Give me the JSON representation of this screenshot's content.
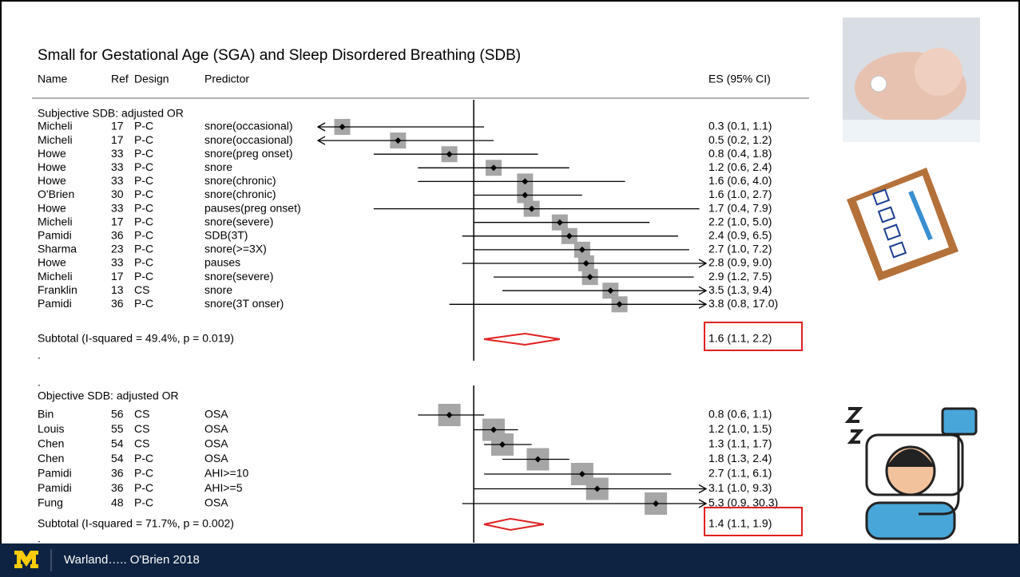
{
  "chart_data": {
    "type": "forest",
    "title": "Small for Gestational Age (SGA) and Sleep Disordered Breathing (SDB)",
    "columns": [
      "Name",
      "Ref",
      "Design",
      "Predictor",
      "ES (95% CI)"
    ],
    "xscale": "log",
    "xlim": [
      0.24,
      8.4
    ],
    "null_line": 1,
    "box_color": "#a6a6a6",
    "diamond_color": "#e02020",
    "highlight_color": "#e02020",
    "groups": [
      {
        "title": "Subjective SDB: adjusted OR",
        "after": ".",
        "rows": [
          {
            "name": "Micheli",
            "ref": 17,
            "design": "P-C",
            "predictor": "snore(occasional)",
            "es": 0.3,
            "lo": 0.1,
            "hi": 1.1,
            "label": "0.3 (0.1, 1.1)"
          },
          {
            "name": "Micheli",
            "ref": 17,
            "design": "P-C",
            "predictor": "snore(occasional)",
            "es": 0.5,
            "lo": 0.2,
            "hi": 1.2,
            "label": "0.5 (0.2, 1.2)"
          },
          {
            "name": "Howe",
            "ref": 33,
            "design": "P-C",
            "predictor": "snore(preg onset)",
            "es": 0.8,
            "lo": 0.4,
            "hi": 1.8,
            "label": "0.8 (0.4, 1.8)"
          },
          {
            "name": "Howe",
            "ref": 33,
            "design": "P-C",
            "predictor": "snore",
            "es": 1.2,
            "lo": 0.6,
            "hi": 2.4,
            "label": "1.2 (0.6, 2.4)"
          },
          {
            "name": "Howe",
            "ref": 33,
            "design": "P-C",
            "predictor": "snore(chronic)",
            "es": 1.6,
            "lo": 0.6,
            "hi": 4,
            "label": "1.6 (0.6, 4.0)"
          },
          {
            "name": "O'Brien",
            "ref": 30,
            "design": "P-C",
            "predictor": "snore(chronic)",
            "es": 1.6,
            "lo": 1,
            "hi": 2.7,
            "label": "1.6 (1.0, 2.7)"
          },
          {
            "name": "Howe",
            "ref": 33,
            "design": "P-C",
            "predictor": "pauses(preg onset)",
            "es": 1.7,
            "lo": 0.4,
            "hi": 7.9,
            "label": "1.7 (0.4, 7.9)"
          },
          {
            "name": "Micheli",
            "ref": 17,
            "design": "P-C",
            "predictor": "snore(severe)",
            "es": 2.2,
            "lo": 1,
            "hi": 5,
            "label": "2.2 (1.0, 5.0)"
          },
          {
            "name": "Pamidi",
            "ref": 36,
            "design": "P-C",
            "predictor": "SDB(3T)",
            "es": 2.4,
            "lo": 0.9,
            "hi": 6.5,
            "label": "2.4 (0.9, 6.5)"
          },
          {
            "name": "Sharma",
            "ref": 23,
            "design": "P-C",
            "predictor": "snore(>=3X)",
            "es": 2.7,
            "lo": 1,
            "hi": 7.2,
            "label": "2.7 (1.0, 7.2)"
          },
          {
            "name": "Howe",
            "ref": 33,
            "design": "P-C",
            "predictor": "pauses",
            "es": 2.8,
            "lo": 0.9,
            "hi": 9,
            "label": "2.8 (0.9, 9.0)"
          },
          {
            "name": "Micheli",
            "ref": 17,
            "design": "P-C",
            "predictor": "snore(severe)",
            "es": 2.9,
            "lo": 1.2,
            "hi": 7.5,
            "label": "2.9 (1.2, 7.5)"
          },
          {
            "name": "Franklin",
            "ref": 13,
            "design": "CS",
            "predictor": "snore",
            "es": 3.5,
            "lo": 1.3,
            "hi": 9.4,
            "label": "3.5 (1.3, 9.4)"
          },
          {
            "name": "Pamidi",
            "ref": 36,
            "design": "P-C",
            "predictor": "snore(3T onser)",
            "es": 3.8,
            "lo": 0.8,
            "hi": 17,
            "label": "3.8 (0.8, 17.0)"
          }
        ],
        "subtotal": {
          "label": "Subtotal  (I-squared = 49.4%, p = 0.019)",
          "es": 1.6,
          "lo": 1.1,
          "hi": 2.2,
          "es_label": "1.6 (1.1, 2.2)"
        }
      },
      {
        "title": "Objective SDB: adjusted OR",
        "before": ".",
        "after": ".",
        "rows": [
          {
            "name": "Bin",
            "ref": 56,
            "design": "CS",
            "predictor": "OSA",
            "es": 0.8,
            "lo": 0.6,
            "hi": 1.1,
            "label": "0.8 (0.6, 1.1)"
          },
          {
            "name": "Louis",
            "ref": 55,
            "design": "CS",
            "predictor": "OSA",
            "es": 1.2,
            "lo": 1,
            "hi": 1.5,
            "label": "1.2 (1.0, 1.5)"
          },
          {
            "name": "Chen",
            "ref": 54,
            "design": "CS",
            "predictor": "OSA",
            "es": 1.3,
            "lo": 1.1,
            "hi": 1.7,
            "label": "1.3 (1.1, 1.7)"
          },
          {
            "name": "Chen",
            "ref": 54,
            "design": "P-C",
            "predictor": "OSA",
            "es": 1.8,
            "lo": 1.3,
            "hi": 2.4,
            "label": "1.8 (1.3, 2.4)"
          },
          {
            "name": "Pamidi",
            "ref": 36,
            "design": "P-C",
            "predictor": "AHI>=10",
            "es": 2.7,
            "lo": 1.1,
            "hi": 6.1,
            "label": "2.7 (1.1, 6.1)"
          },
          {
            "name": "Pamidi",
            "ref": 36,
            "design": "P-C",
            "predictor": "AHI>=5",
            "es": 3.1,
            "lo": 1,
            "hi": 9.3,
            "label": "3.1 (1.0, 9.3)"
          },
          {
            "name": "Fung",
            "ref": 48,
            "design": "P-C",
            "predictor": "OSA",
            "es": 5.3,
            "lo": 0.9,
            "hi": 30.3,
            "label": "5.3 (0.9, 30.3)"
          }
        ],
        "subtotal": {
          "label": "Subtotal  (I-squared = 71.7%, p = 0.002)",
          "es": 1.4,
          "lo": 1.1,
          "hi": 1.9,
          "es_label": "1.4 (1.1, 1.9)"
        }
      }
    ]
  },
  "footer": {
    "citation": "Warland….. O'Brien 2018"
  }
}
